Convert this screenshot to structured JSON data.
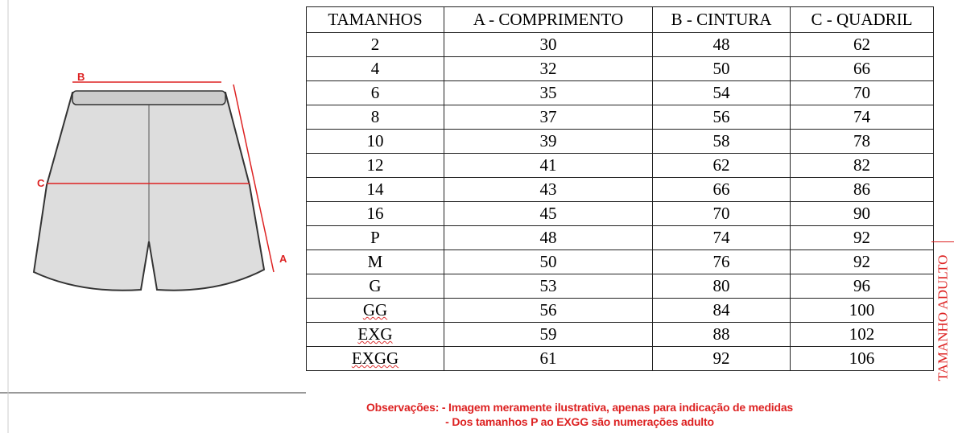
{
  "table": {
    "headers": [
      "TAMANHOS",
      "A - COMPRIMENTO",
      "B - CINTURA",
      "C - QUADRIL"
    ],
    "rows": [
      [
        "2",
        30,
        48,
        62
      ],
      [
        "4",
        32,
        50,
        66
      ],
      [
        "6",
        35,
        54,
        70
      ],
      [
        "8",
        37,
        56,
        74
      ],
      [
        "10",
        39,
        58,
        78
      ],
      [
        "12",
        41,
        62,
        82
      ],
      [
        "14",
        43,
        66,
        86
      ],
      [
        "16",
        45,
        70,
        90
      ],
      [
        "P",
        48,
        74,
        92
      ],
      [
        "M",
        50,
        76,
        92
      ],
      [
        "G",
        53,
        80,
        96
      ],
      [
        "GG",
        56,
        84,
        100
      ],
      [
        "EXG",
        59,
        88,
        102
      ],
      [
        "EXGG",
        61,
        92,
        106
      ]
    ]
  },
  "side_label": "TAMANHO ADULTO",
  "diagram": {
    "labels": [
      "A",
      "B",
      "C"
    ]
  },
  "notes": [
    "Observações: - Imagem meramente ilustrativa, apenas para indicação de medidas",
    "- Dos tamanhos P ao EXGG são numerações adulto"
  ]
}
